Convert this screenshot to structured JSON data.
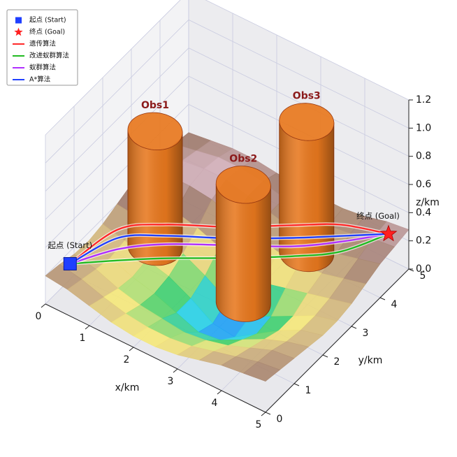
{
  "chart_data": {
    "type": "surface3d",
    "xlabel": "x/km",
    "ylabel": "y/km",
    "zlabel": "z/km",
    "xlim": [
      0,
      5
    ],
    "ylim": [
      0,
      5
    ],
    "zlim": [
      0,
      1.2
    ],
    "xticks": [
      0,
      1,
      2,
      3,
      4,
      5
    ],
    "yticks": [
      0,
      1,
      2,
      3,
      4,
      5
    ],
    "zticks": [
      {
        "value": 0,
        "label": "0.0"
      },
      {
        "value": 0.2,
        "label": "0.2"
      },
      {
        "value": 0.4,
        "label": "0.4"
      },
      {
        "value": 0.6,
        "label": "0.6"
      },
      {
        "value": 0.8,
        "label": "0.8"
      },
      {
        "value": 1.0,
        "label": "1.0"
      },
      {
        "value": 1.2,
        "label": "1.2"
      }
    ],
    "grid": true,
    "legend": "upper left",
    "surface": {
      "x": [
        0,
        0.5,
        1,
        1.5,
        2,
        2.5,
        3,
        3.5,
        4,
        4.5,
        5
      ],
      "y": [
        0,
        0.5,
        1,
        1.5,
        2,
        2.5,
        3,
        3.5,
        4,
        4.5,
        5
      ],
      "z": [
        [
          0.2,
          0.18,
          0.15,
          0.14,
          0.16,
          0.2,
          0.24,
          0.26,
          0.25,
          0.22,
          0.2
        ],
        [
          0.18,
          0.15,
          0.12,
          0.1,
          0.12,
          0.18,
          0.24,
          0.28,
          0.28,
          0.25,
          0.22
        ],
        [
          0.14,
          0.1,
          0.06,
          0.04,
          0.06,
          0.12,
          0.2,
          0.28,
          0.3,
          0.28,
          0.24
        ],
        [
          0.1,
          0.06,
          0.02,
          0.0,
          0.02,
          0.08,
          0.16,
          0.26,
          0.3,
          0.28,
          0.24
        ],
        [
          0.08,
          0.04,
          0.0,
          -0.06,
          -0.06,
          0.0,
          0.1,
          0.2,
          0.26,
          0.26,
          0.22
        ],
        [
          0.08,
          0.04,
          -0.02,
          -0.12,
          -0.16,
          -0.1,
          0.04,
          0.16,
          0.22,
          0.22,
          0.2
        ],
        [
          0.1,
          0.06,
          0.0,
          -0.1,
          -0.18,
          -0.14,
          0.0,
          0.12,
          0.18,
          0.2,
          0.2
        ],
        [
          0.14,
          0.1,
          0.04,
          -0.02,
          -0.08,
          -0.06,
          0.04,
          0.12,
          0.16,
          0.18,
          0.2
        ],
        [
          0.18,
          0.14,
          0.1,
          0.06,
          0.02,
          0.02,
          0.08,
          0.12,
          0.16,
          0.2,
          0.22
        ],
        [
          0.2,
          0.18,
          0.16,
          0.12,
          0.1,
          0.1,
          0.12,
          0.16,
          0.2,
          0.24,
          0.26
        ],
        [
          0.22,
          0.2,
          0.18,
          0.16,
          0.14,
          0.14,
          0.16,
          0.2,
          0.24,
          0.26,
          0.28
        ]
      ],
      "colormap": [
        "#1e7dff",
        "#2ad0e6",
        "#44cf6a",
        "#f4e77c",
        "#cdb07e",
        "#9e7a6c",
        "#d8b6c4"
      ]
    },
    "obstacles": [
      {
        "name": "Obs1",
        "x": 0.8,
        "y": 2.6,
        "radius": 0.52,
        "height": 0.82,
        "color": "#e8781e"
      },
      {
        "name": "Obs2",
        "x": 3.0,
        "y": 2.3,
        "radius": 0.52,
        "height": 0.84,
        "color": "#e8781e"
      },
      {
        "name": "Obs3",
        "x": 3.2,
        "y": 4.2,
        "radius": 0.52,
        "height": 0.93,
        "color": "#e8781e"
      }
    ],
    "start": {
      "label": "起点 (Start)",
      "x": 0.3,
      "y": 0.4,
      "z": 0.25,
      "color": "#1f3fff"
    },
    "goal": {
      "label": "终点 (Goal)",
      "x": 4.8,
      "y": 4.6,
      "z": 0.3,
      "color": "#ff2020"
    },
    "series": [
      {
        "name": "遗传算法",
        "color": "#ff2a2a",
        "x": [
          0.3,
          0.98,
          1.65,
          2.55,
          3.45,
          4.13,
          4.8
        ],
        "y": [
          0.4,
          1.03,
          1.66,
          2.5,
          3.34,
          3.97,
          4.6
        ],
        "z": [
          0.25,
          0.47,
          0.48,
          0.43,
          0.41,
          0.39,
          0.3
        ]
      },
      {
        "name": "改进蚁群算法",
        "color": "#22bb22",
        "x": [
          0.3,
          0.98,
          1.65,
          2.55,
          3.45,
          4.13,
          4.8
        ],
        "y": [
          0.4,
          1.03,
          1.66,
          2.5,
          3.34,
          3.97,
          4.6
        ],
        "z": [
          0.25,
          0.25,
          0.24,
          0.21,
          0.19,
          0.2,
          0.3
        ]
      },
      {
        "name": "蚁群算法",
        "color": "#b030ff",
        "x": [
          0.3,
          0.98,
          1.65,
          2.55,
          3.45,
          4.13,
          4.8
        ],
        "y": [
          0.4,
          1.03,
          1.66,
          2.5,
          3.34,
          3.97,
          4.6
        ],
        "z": [
          0.25,
          0.33,
          0.34,
          0.3,
          0.26,
          0.27,
          0.3
        ]
      },
      {
        "name": "A*算法",
        "color": "#2040ff",
        "x": [
          0.3,
          0.98,
          1.65,
          2.55,
          3.45,
          4.13,
          4.8
        ],
        "y": [
          0.4,
          1.03,
          1.66,
          2.5,
          3.34,
          3.97,
          4.6
        ],
        "z": [
          0.25,
          0.41,
          0.4,
          0.35,
          0.32,
          0.31,
          0.3
        ]
      }
    ]
  }
}
